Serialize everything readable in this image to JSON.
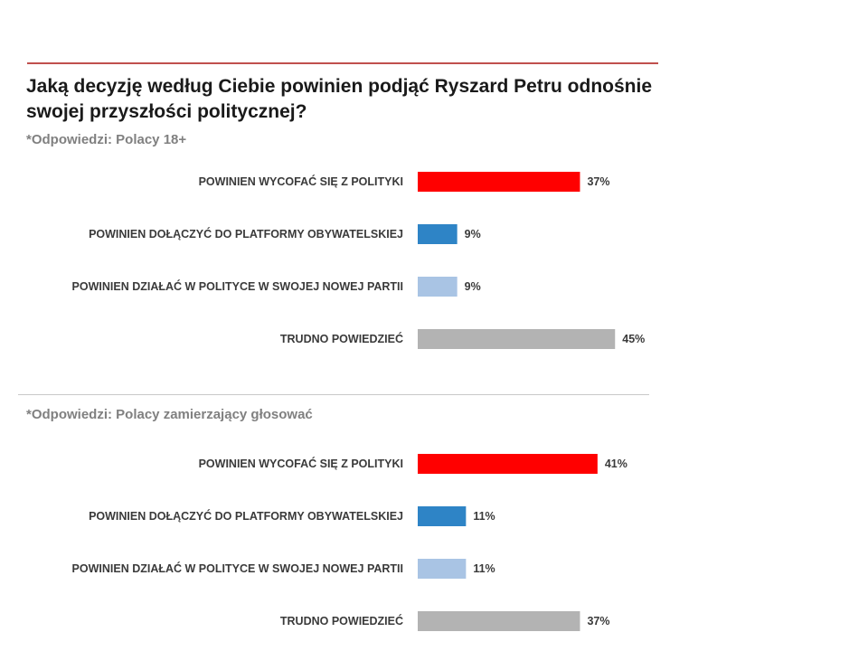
{
  "title": "Jaką decyzję według Ciebie powinien podjąć Ryszard Petru odnośnie swojej przyszłości politycznej?",
  "chart_data": [
    {
      "type": "bar",
      "orientation": "horizontal",
      "subtitle": "*Odpowiedzi: Polacy 18+",
      "categories": [
        "POWINIEN WYCOFAĆ SIĘ Z POLITYKI",
        "POWINIEN DOŁĄCZYĆ DO PLATFORMY OBYWATELSKIEJ",
        "POWINIEN DZIAŁAĆ W POLITYCE W SWOJEJ NOWEJ PARTII",
        "TRUDNO POWIEDZIEĆ"
      ],
      "values": [
        37,
        9,
        9,
        45
      ],
      "value_labels": [
        "37%",
        "9%",
        "9%",
        "45%"
      ],
      "colors": [
        "#ff0000",
        "#2e84c6",
        "#a9c4e4",
        "#b3b3b3"
      ],
      "unit": "%",
      "grid": false
    },
    {
      "type": "bar",
      "orientation": "horizontal",
      "subtitle": "*Odpowiedzi: Polacy zamierzający głosować",
      "categories": [
        "POWINIEN WYCOFAĆ SIĘ Z POLITYKI",
        "POWINIEN DOŁĄCZYĆ DO PLATFORMY OBYWATELSKIEJ",
        "POWINIEN DZIAŁAĆ W POLITYCE W SWOJEJ NOWEJ PARTII",
        "TRUDNO POWIEDZIEĆ"
      ],
      "values": [
        41,
        11,
        11,
        37
      ],
      "value_labels": [
        "41%",
        "11%",
        "11%",
        "37%"
      ],
      "colors": [
        "#ff0000",
        "#2e84c6",
        "#a9c4e4",
        "#b3b3b3"
      ],
      "unit": "%",
      "grid": false
    }
  ]
}
